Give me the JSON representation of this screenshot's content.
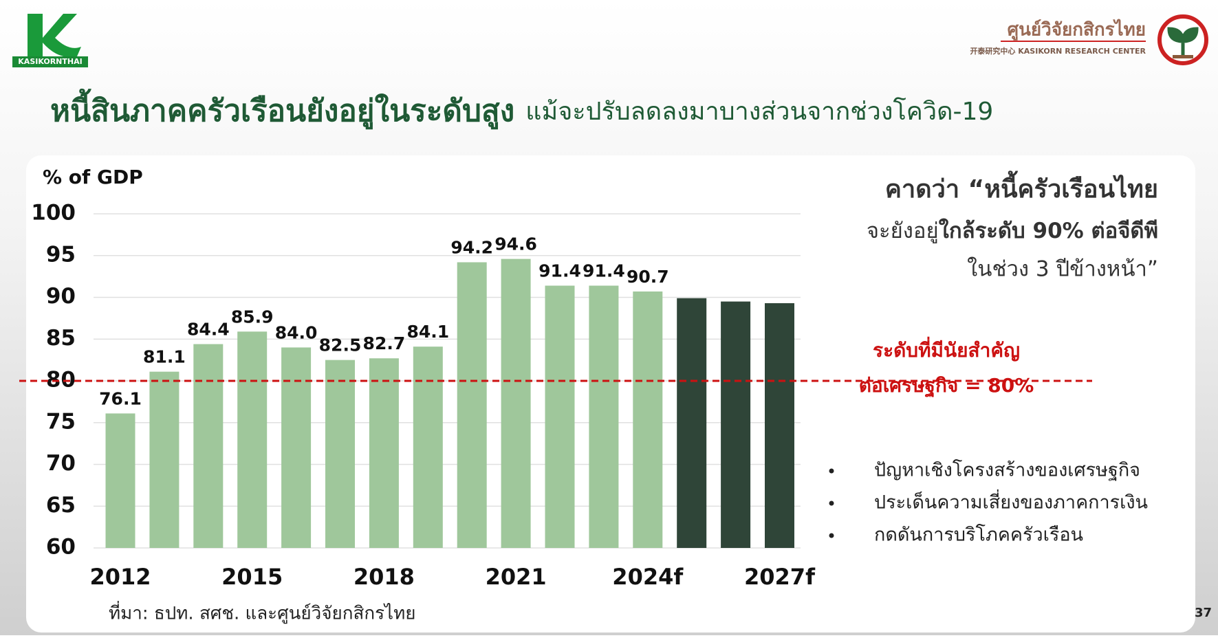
{
  "header": {
    "logo_text": "KASIKORNTHAI",
    "center_name": "ศูนย์วิจัยกสิกรไทย",
    "center_name_en": "开泰研究中心 KASIKORN RESEARCH CENTER",
    "title_bold": "หนี้สินภาคครัวเรือนยังอยู่ในระดับสูง",
    "title_regular": "แม้จะปรับลดลงมาบางส่วนจากช่วงโควิด-19"
  },
  "chart_data": {
    "type": "bar",
    "y_label": "% of GDP",
    "categories": [
      "2012",
      null,
      null,
      "2015",
      null,
      null,
      "2018",
      null,
      null,
      "2021",
      null,
      null,
      "2024f",
      null,
      null,
      "2027f"
    ],
    "values": [
      76.1,
      81.1,
      84.4,
      85.9,
      84.0,
      82.5,
      82.7,
      84.1,
      94.2,
      94.6,
      91.4,
      91.4,
      90.7,
      89.9,
      89.5,
      89.3
    ],
    "value_labels": [
      "76.1",
      "81.1",
      "84.4",
      "85.9",
      "84.0",
      "82.5",
      "82.7",
      "84.1",
      "94.2",
      "94.6",
      "91.4",
      "91.4",
      "90.7",
      null,
      null,
      null
    ],
    "colors": [
      "#9fc79b",
      "#9fc79b",
      "#9fc79b",
      "#9fc79b",
      "#9fc79b",
      "#9fc79b",
      "#9fc79b",
      "#9fc79b",
      "#9fc79b",
      "#9fc79b",
      "#9fc79b",
      "#9fc79b",
      "#9fc79b",
      "#2f4538",
      "#2f4538",
      "#2f4538"
    ],
    "ylim": [
      60,
      100
    ],
    "yticks": [
      60,
      65,
      70,
      75,
      80,
      85,
      90,
      95,
      100
    ],
    "grid": true,
    "reference_line": {
      "value": 80,
      "color": "#cc1111",
      "label_line1": "ระดับที่มีนัยสำคัญ",
      "label_line2": "ต่อเศรษฐกิจ = 80%"
    }
  },
  "quote": {
    "line1": "คาดว่า “หนี้ครัวเรือนไทย",
    "line2_regular": "จะยังอยู่",
    "line2_bold": "ใกล้ระดับ 90% ต่อจีดีพี",
    "line3": "ในช่วง 3 ปีข้างหน้า”"
  },
  "bullets": [
    "ปัญหาเชิงโครงสร้างของเศรษฐกิจ",
    "ประเด็นความเสี่ยงของภาคการเงิน",
    "กดดันการบริโภคครัวเรือน"
  ],
  "source": "ที่มา: ธปท. สศช. และศูนย์วิจัยกสิกรไทย",
  "page_number": "37"
}
